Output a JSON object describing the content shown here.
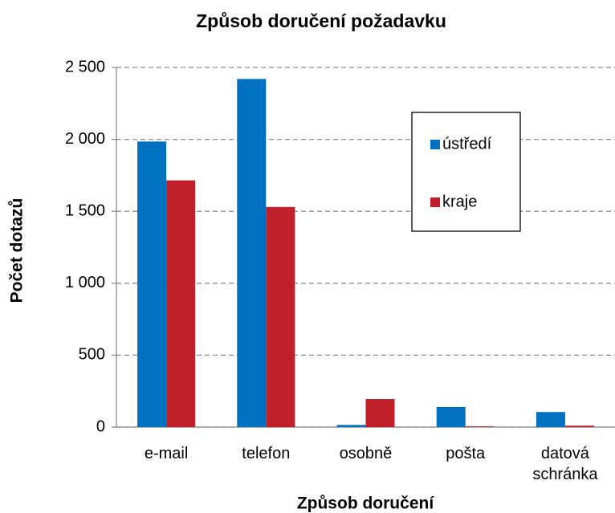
{
  "chart_data": {
    "type": "bar",
    "title": "Způsob doručení požadavku",
    "x_label": "Způsob doručení",
    "y_label": "Počet dotazů",
    "categories": [
      "e-mail",
      "telefon",
      "osobně",
      "pošta",
      "datová schránka"
    ],
    "series": [
      {
        "name": "ústředí",
        "color": "#0070c0",
        "values": [
          1985,
          2420,
          15,
          140,
          105
        ]
      },
      {
        "name": "kraje",
        "color": "#c0202a",
        "values": [
          1715,
          1530,
          195,
          5,
          10
        ]
      }
    ],
    "ylim": [
      0,
      2500
    ],
    "yticks": [
      0,
      500,
      {
        "value": 1000,
        "label": "1 000"
      },
      {
        "value": 1500,
        "label": "1 500"
      },
      {
        "value": 2000,
        "label": "2 000"
      },
      {
        "value": 2500,
        "label": "2 500"
      }
    ],
    "grid": true,
    "legend": "upper right"
  }
}
